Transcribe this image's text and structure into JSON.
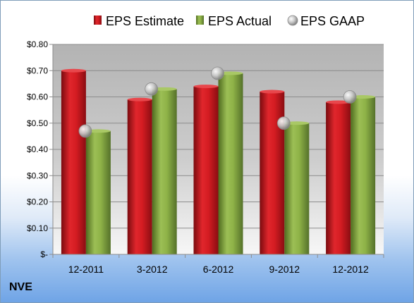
{
  "ticker": "NVE",
  "colors": {
    "estimate": "#c0161d",
    "actual": "#7ea23a",
    "gaap": "#c8c8c8"
  },
  "chart_data": {
    "type": "bar",
    "categories": [
      "12-2011",
      "3-2012",
      "6-2012",
      "9-2012",
      "12-2012"
    ],
    "series": [
      {
        "name": "EPS Estimate",
        "type": "bar",
        "values": [
          0.7,
          0.59,
          0.64,
          0.62,
          0.58
        ]
      },
      {
        "name": "EPS Actual",
        "type": "bar",
        "values": [
          0.47,
          0.63,
          0.69,
          0.5,
          0.6
        ]
      },
      {
        "name": "EPS GAAP",
        "type": "scatter",
        "values": [
          0.47,
          0.63,
          0.69,
          0.5,
          0.6
        ]
      }
    ],
    "ylim": [
      0,
      0.8
    ],
    "yticks": [
      0,
      0.1,
      0.2,
      0.3,
      0.4,
      0.5,
      0.6,
      0.7,
      0.8
    ],
    "ytick_labels": [
      "$-",
      "$0.10",
      "$0.20",
      "$0.30",
      "$0.40",
      "$0.50",
      "$0.60",
      "$0.70",
      "$0.80"
    ],
    "legend_position": "top",
    "grid": true
  }
}
